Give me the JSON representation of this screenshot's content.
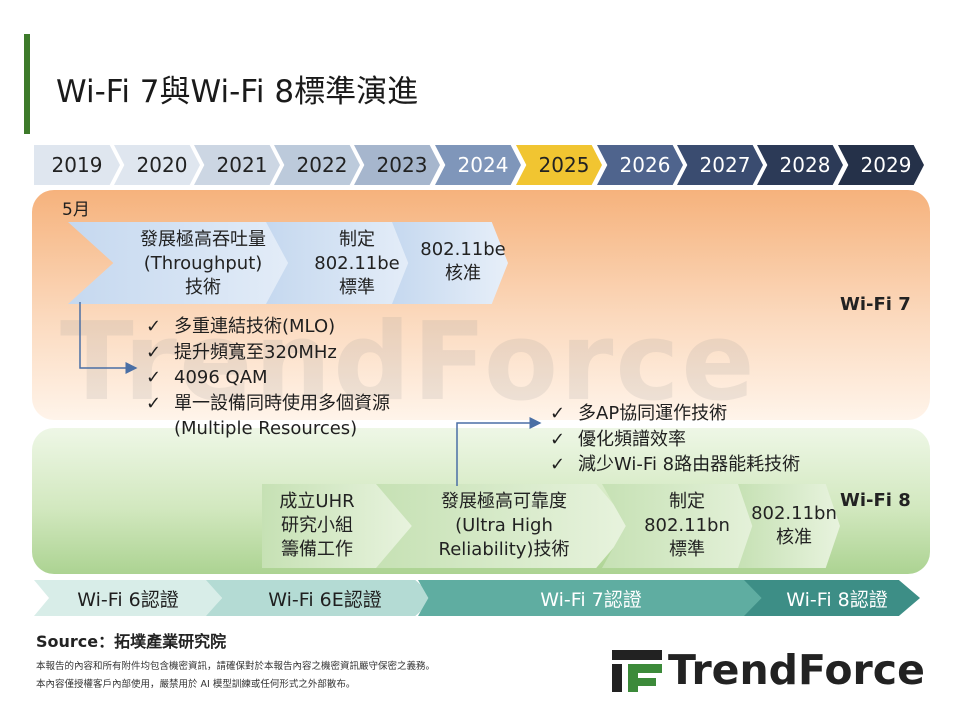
{
  "title": "Wi-Fi 7與Wi-Fi 8標準演進",
  "years": [
    "2019",
    "2020",
    "2021",
    "2022",
    "2023",
    "2024",
    "2025",
    "2026",
    "2027",
    "2028",
    "2029"
  ],
  "year_colors": [
    {
      "bg": "#dfe6ef",
      "fg": "#222222"
    },
    {
      "bg": "#dfe6ef",
      "fg": "#222222"
    },
    {
      "bg": "#ccd6e3",
      "fg": "#222222"
    },
    {
      "bg": "#bccadb",
      "fg": "#222222"
    },
    {
      "bg": "#a6b6cd",
      "fg": "#222222"
    },
    {
      "bg": "#7f96ba",
      "fg": "#ffffff"
    },
    {
      "bg": "#f1c531",
      "fg": "#222222"
    },
    {
      "bg": "#4f648d",
      "fg": "#ffffff"
    },
    {
      "bg": "#3a4c70",
      "fg": "#ffffff"
    },
    {
      "bg": "#2c3a57",
      "fg": "#ffffff"
    },
    {
      "bg": "#253149",
      "fg": "#ffffff"
    }
  ],
  "wifi7": {
    "label": "Wi-Fi 7",
    "month": "5月",
    "stages": [
      {
        "lines": [
          "發展極高吞吐量",
          "(Throughput)",
          "技術"
        ]
      },
      {
        "lines": [
          "制定",
          "802.11be",
          "標準"
        ]
      },
      {
        "lines": [
          "802.11be",
          "核准"
        ]
      }
    ],
    "features": [
      "多重連結技術(MLO)",
      "提升頻寬至320MHz",
      "4096 QAM",
      "單一設備同時使用多個資源"
    ],
    "feature_cont": "(Multiple Resources)"
  },
  "wifi8": {
    "label": "Wi-Fi 8",
    "stages": [
      {
        "lines": [
          "成立UHR",
          "研究小組",
          "籌備工作"
        ]
      },
      {
        "lines": [
          "發展極高可靠度",
          "(Ultra High",
          "Reliability)技術"
        ]
      },
      {
        "lines": [
          "制定",
          "802.11bn",
          "標準"
        ]
      },
      {
        "lines": [
          "802.11bn",
          "核准"
        ]
      }
    ],
    "features": [
      "多AP協同運作技術",
      "優化頻譜效率",
      "減少Wi-Fi 8路由器能耗技術"
    ]
  },
  "check_mark": "✓",
  "watermark": "TrendForce",
  "certifications": [
    {
      "label": "Wi-Fi 6認證",
      "color": "#d8ede8"
    },
    {
      "label": "Wi-Fi 6E認證",
      "color": "#b4dbd4"
    },
    {
      "label": "Wi-Fi 7認證",
      "color": "#5fada1"
    },
    {
      "label": "Wi-Fi 8認證",
      "color": "#3d8e86"
    }
  ],
  "source": "Source：拓墣產業研究院",
  "disclaimer": [
    "本報告的內容和所有附件均包含機密資訊，請確保對於本報告內容之機密資訊嚴守保密之義務。",
    "本內容僅授權客戶內部使用，嚴禁用於 AI 模型訓練或任何形式之外部散布。"
  ],
  "logo_text": "TrendForce",
  "colors": {
    "accent_green": "#3d7a2a",
    "connector_blue": "#4a6fa5",
    "logo_green": "#3c8a3a"
  }
}
